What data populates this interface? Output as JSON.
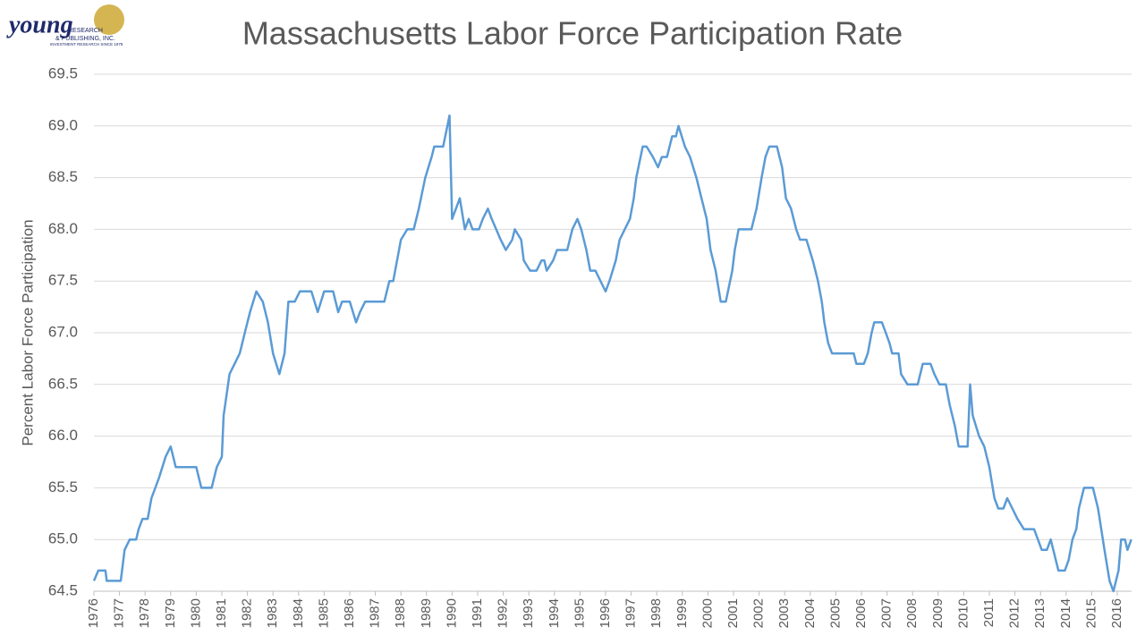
{
  "logo": {
    "name": "young",
    "line1": "RESEARCH",
    "line2": "& PUBLISHING, INC.",
    "tagline": "INVESTMENT RESEARCH SINCE 1978"
  },
  "chart_data": {
    "type": "line",
    "title": "Massachusetts Labor Force Participation Rate",
    "y_label": "Percent Labor Force Participation",
    "xlim": [
      1976,
      2016.56
    ],
    "xticks": [
      1976,
      1977,
      1978,
      1979,
      1980,
      1981,
      1982,
      1983,
      1984,
      1985,
      1986,
      1987,
      1988,
      1989,
      1990,
      1991,
      1992,
      1993,
      1994,
      1995,
      1996,
      1997,
      1998,
      1999,
      2000,
      2001,
      2002,
      2003,
      2004,
      2005,
      2006,
      2007,
      2008,
      2009,
      2010,
      2011,
      2012,
      2013,
      2014,
      2015,
      2016
    ],
    "ylim": [
      64.5,
      69.5
    ],
    "yticks": [
      64.5,
      {
        "value": 65,
        "label": "65.0"
      },
      65.5,
      {
        "value": 66,
        "label": "66.0"
      },
      66.5,
      {
        "value": 67,
        "label": "67.0"
      },
      67.5,
      {
        "value": 68,
        "label": "68.0"
      },
      68.5,
      {
        "value": 69,
        "label": "69.0"
      },
      69.5
    ],
    "grid": true,
    "series": [
      {
        "name": "Massachusetts",
        "color": "#5b9bd5",
        "x": [
          1976.0,
          1976.17,
          1976.45,
          1976.5,
          1977.05,
          1977.2,
          1977.4,
          1977.65,
          1977.75,
          1977.9,
          1978.1,
          1978.25,
          1978.55,
          1978.8,
          1979.0,
          1979.2,
          1980.0,
          1980.2,
          1980.6,
          1980.8,
          1981.0,
          1981.07,
          1981.3,
          1981.5,
          1981.7,
          1981.9,
          1982.1,
          1982.35,
          1982.6,
          1982.8,
          1983.0,
          1983.25,
          1983.45,
          1983.6,
          1983.85,
          1984.05,
          1984.5,
          1984.75,
          1985.0,
          1985.35,
          1985.55,
          1985.7,
          1986.0,
          1986.25,
          1986.4,
          1986.6,
          1987.35,
          1987.55,
          1987.7,
          1988.0,
          1988.25,
          1988.5,
          1988.7,
          1988.95,
          1989.2,
          1989.3,
          1989.65,
          1989.9,
          1990.0,
          1990.15,
          1990.3,
          1990.5,
          1990.65,
          1990.8,
          1991.05,
          1991.2,
          1991.4,
          1991.55,
          1991.9,
          1992.1,
          1992.35,
          1992.45,
          1992.7,
          1992.8,
          1993.05,
          1993.3,
          1993.5,
          1993.6,
          1993.7,
          1993.95,
          1994.1,
          1994.5,
          1994.7,
          1994.9,
          1995.05,
          1995.25,
          1995.4,
          1995.6,
          1995.8,
          1996.0,
          1996.15,
          1996.4,
          1996.55,
          1996.75,
          1996.95,
          1997.1,
          1997.2,
          1997.45,
          1997.6,
          1997.85,
          1998.05,
          1998.2,
          1998.4,
          1998.6,
          1998.75,
          1998.85,
          1999.1,
          1999.3,
          1999.55,
          1999.75,
          1999.95,
          2000.1,
          2000.3,
          2000.5,
          2000.7,
          2000.95,
          2001.05,
          2001.2,
          2001.7,
          2001.9,
          2002.1,
          2002.25,
          2002.4,
          2002.7,
          2002.9,
          2003.05,
          2003.25,
          2003.45,
          2003.6,
          2003.85,
          2004.1,
          2004.3,
          2004.45,
          2004.55,
          2004.7,
          2004.85,
          2005.7,
          2005.8,
          2006.1,
          2006.25,
          2006.4,
          2006.5,
          2006.8,
          2006.95,
          2007.1,
          2007.2,
          2007.45,
          2007.55,
          2007.8,
          2008.2,
          2008.4,
          2008.7,
          2008.85,
          2009.05,
          2009.3,
          2009.45,
          2009.65,
          2009.8,
          2010.15,
          2010.25,
          2010.35,
          2010.6,
          2010.8,
          2011.0,
          2011.2,
          2011.35,
          2011.55,
          2011.7,
          2011.9,
          2012.1,
          2012.35,
          2012.75,
          2012.9,
          2013.05,
          2013.25,
          2013.4,
          2013.5,
          2013.7,
          2013.95,
          2014.1,
          2014.25,
          2014.4,
          2014.5,
          2014.7,
          2015.05,
          2015.25,
          2015.5,
          2015.7,
          2015.85,
          2016.05,
          2016.15,
          2016.3,
          2016.4,
          2016.55
        ],
        "values": [
          64.6,
          64.7,
          64.7,
          64.6,
          64.6,
          64.9,
          65.0,
          65.0,
          65.1,
          65.2,
          65.2,
          65.4,
          65.6,
          65.8,
          65.9,
          65.7,
          65.7,
          65.5,
          65.5,
          65.7,
          65.8,
          66.2,
          66.6,
          66.7,
          66.8,
          67.0,
          67.2,
          67.4,
          67.3,
          67.1,
          66.8,
          66.6,
          66.8,
          67.3,
          67.3,
          67.4,
          67.4,
          67.2,
          67.4,
          67.4,
          67.2,
          67.3,
          67.3,
          67.1,
          67.2,
          67.3,
          67.3,
          67.5,
          67.5,
          67.9,
          68.0,
          68.0,
          68.2,
          68.5,
          68.7,
          68.8,
          68.8,
          69.1,
          68.1,
          68.2,
          68.3,
          68.0,
          68.1,
          68.0,
          68.0,
          68.1,
          68.2,
          68.1,
          67.9,
          67.8,
          67.9,
          68.0,
          67.9,
          67.7,
          67.6,
          67.6,
          67.7,
          67.7,
          67.6,
          67.7,
          67.8,
          67.8,
          68.0,
          68.1,
          68.0,
          67.8,
          67.6,
          67.6,
          67.5,
          67.4,
          67.5,
          67.7,
          67.9,
          68.0,
          68.1,
          68.3,
          68.5,
          68.8,
          68.8,
          68.7,
          68.6,
          68.7,
          68.7,
          68.9,
          68.9,
          69.0,
          68.8,
          68.7,
          68.5,
          68.3,
          68.1,
          67.8,
          67.6,
          67.3,
          67.3,
          67.6,
          67.8,
          68.0,
          68.0,
          68.2,
          68.5,
          68.7,
          68.8,
          68.8,
          68.6,
          68.3,
          68.2,
          68.0,
          67.9,
          67.9,
          67.7,
          67.5,
          67.3,
          67.1,
          66.9,
          66.8,
          66.8,
          66.7,
          66.7,
          66.8,
          67.0,
          67.1,
          67.1,
          67.0,
          66.9,
          66.8,
          66.8,
          66.6,
          66.5,
          66.5,
          66.7,
          66.7,
          66.6,
          66.5,
          66.5,
          66.3,
          66.1,
          65.9,
          65.9,
          66.5,
          66.2,
          66.0,
          65.9,
          65.7,
          65.4,
          65.3,
          65.3,
          65.4,
          65.3,
          65.2,
          65.1,
          65.1,
          65.0,
          64.9,
          64.9,
          65.0,
          64.9,
          64.7,
          64.7,
          64.8,
          65.0,
          65.1,
          65.3,
          65.5,
          65.5,
          65.3,
          64.9,
          64.6,
          64.5,
          64.7,
          65.0,
          65.0,
          64.9,
          65.0
        ]
      }
    ]
  }
}
